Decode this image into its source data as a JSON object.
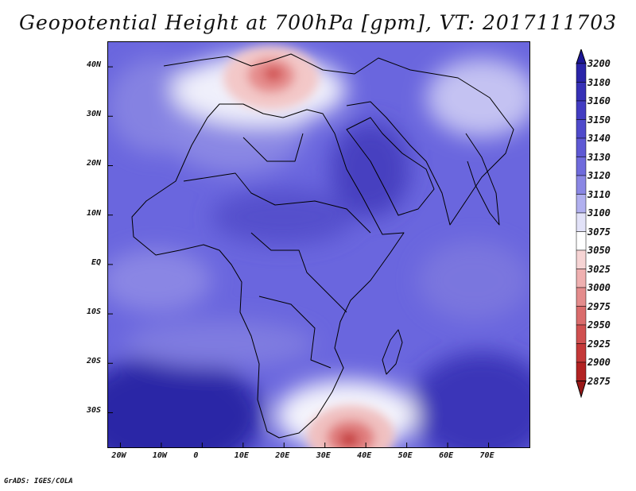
{
  "title": "Geopotential Height at 700hPa [gpm], VT: 2017111703",
  "footer": "GrADS: IGES/COLA",
  "colors": {
    "base_field": "#6a66de",
    "high": "#3b34b8",
    "low_center": "#c83a3a",
    "white": "#ffffff"
  },
  "map": {
    "lon_range": [
      -23,
      80
    ],
    "lat_range": [
      -37,
      45
    ],
    "x_ticks": [
      "20W",
      "10W",
      "0",
      "10E",
      "20E",
      "30E",
      "40E",
      "50E",
      "60E",
      "70E"
    ],
    "x_tick_values": [
      -20,
      -10,
      0,
      10,
      20,
      30,
      40,
      50,
      60,
      70
    ],
    "y_ticks": [
      "40N",
      "30N",
      "20N",
      "10N",
      "EQ",
      "10S",
      "20S",
      "30S"
    ],
    "y_tick_values": [
      40,
      30,
      20,
      10,
      0,
      -10,
      -20,
      -30
    ]
  },
  "colorbar": {
    "levels": [
      "3200",
      "3180",
      "3160",
      "3150",
      "3140",
      "3130",
      "3120",
      "3110",
      "3100",
      "3075",
      "3050",
      "3025",
      "3000",
      "2975",
      "2950",
      "2925",
      "2900",
      "2875"
    ],
    "colors": [
      "#1c1696",
      "#2a24a8",
      "#3630b6",
      "#423cc2",
      "#4f4acb",
      "#5e59d4",
      "#6f6bdc",
      "#8a87e4",
      "#b1b0ef",
      "#e2e2f8",
      "#ffffff",
      "#f6d4d4",
      "#efb0b0",
      "#e48c8c",
      "#da6c6c",
      "#d05050",
      "#c43838",
      "#b22222",
      "#991818"
    ]
  }
}
